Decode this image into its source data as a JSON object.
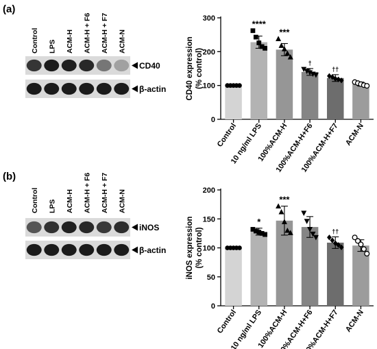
{
  "panels": [
    {
      "letter": "(a)",
      "blot": {
        "lanes": [
          "Control",
          "LPS",
          "ACM-H",
          "ACM-H + F6",
          "ACM-H + F7",
          "ACM-N"
        ],
        "rows": [
          {
            "label": "CD40",
            "intensity": [
              0.8,
              0.92,
              0.9,
              0.86,
              0.5,
              0.3
            ]
          },
          {
            "label": "β-actin",
            "intensity": [
              0.92,
              0.92,
              0.92,
              0.92,
              0.92,
              0.92
            ]
          }
        ]
      },
      "chart_data": {
        "type": "bar",
        "categories": [
          "Control",
          "10 ng/ml LPS",
          "100%ACM-H",
          "100%ACM-H+F6",
          "100%ACM-H+F7",
          "ACM-N"
        ],
        "values": [
          100,
          228,
          206,
          140,
          122,
          104
        ],
        "errors": [
          0,
          18,
          18,
          10,
          10,
          6
        ],
        "sig": [
          "",
          "****",
          "***",
          "†",
          "††",
          ""
        ],
        "points": [
          [
            100,
            100,
            100,
            100,
            100
          ],
          [
            262,
            243,
            226,
            215,
            210
          ],
          [
            238,
            218,
            208,
            195,
            184
          ],
          [
            148,
            142,
            138,
            134,
            131
          ],
          [
            128,
            125,
            120,
            118,
            115
          ],
          [
            110,
            107,
            104,
            101,
            99
          ]
        ],
        "markers": [
          "circle",
          "square",
          "triangle",
          "triangle-down",
          "diamond",
          "circle-open"
        ],
        "bar_colors": [
          "#d4d4d4",
          "#b3b3b3",
          "#969696",
          "#858585",
          "#6d6d6d",
          "#9c9c9c"
        ],
        "title": "",
        "xlabel": "",
        "ylabel": "CD40 expression\n(% control)",
        "ylim": [
          0,
          300
        ],
        "yticks": [
          0,
          100,
          200,
          300
        ]
      }
    },
    {
      "letter": "(b)",
      "blot": {
        "lanes": [
          "Control",
          "LPS",
          "ACM-H",
          "ACM-H + F6",
          "ACM-H + F7",
          "ACM-N"
        ],
        "rows": [
          {
            "label": "iNOS",
            "intensity": [
              0.65,
              0.82,
              0.9,
              0.86,
              0.78,
              0.84
            ]
          },
          {
            "label": "β-actin",
            "intensity": [
              0.92,
              0.92,
              0.92,
              0.92,
              0.92,
              0.92
            ]
          }
        ]
      },
      "chart_data": {
        "type": "bar",
        "categories": [
          "Control",
          "10 ng/ml LPS",
          "100%ACM-H",
          "100%ACM-H+F6",
          "100%ACM-H+F7",
          "ACM-N"
        ],
        "values": [
          100,
          128,
          147,
          136,
          109,
          104
        ],
        "errors": [
          0,
          6,
          25,
          18,
          10,
          10
        ],
        "sig": [
          "",
          "*",
          "***",
          "",
          "††",
          ""
        ],
        "points": [
          [
            100,
            100,
            100,
            100,
            100
          ],
          [
            132,
            129,
            127,
            125,
            123
          ],
          [
            172,
            162,
            145,
            130,
            126
          ],
          [
            160,
            146,
            132,
            124,
            118
          ],
          [
            118,
            113,
            108,
            105,
            101
          ],
          [
            118,
            112,
            106,
            98,
            90
          ]
        ],
        "markers": [
          "circle",
          "square",
          "triangle",
          "triangle-down",
          "diamond",
          "circle-open"
        ],
        "bar_colors": [
          "#d4d4d4",
          "#b3b3b3",
          "#969696",
          "#858585",
          "#6d6d6d",
          "#9c9c9c"
        ],
        "title": "",
        "xlabel": "",
        "ylabel": "iNOS expression\n(% control)",
        "ylim": [
          0,
          200
        ],
        "yticks": [
          0,
          50,
          100,
          150,
          200
        ]
      }
    }
  ]
}
